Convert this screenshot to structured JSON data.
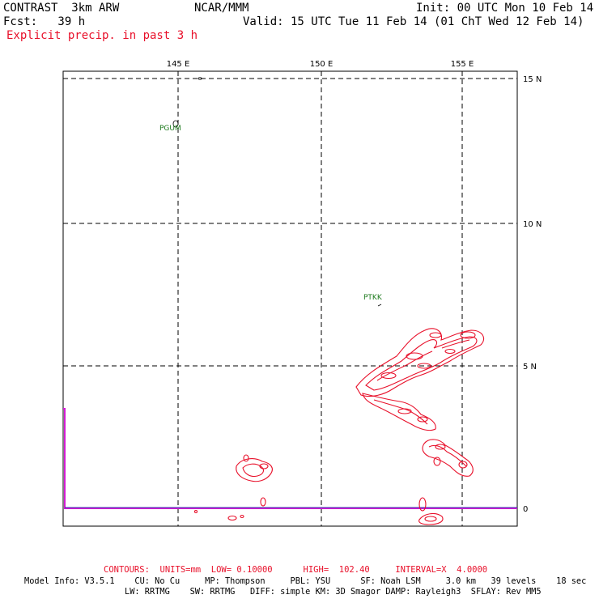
{
  "header": {
    "model": "CONTRAST  3km ARW",
    "fcst": "Fcst:   39 h",
    "center": "NCAR/MMM",
    "init": "Init: 00 UTC Mon 10 Feb 14",
    "valid": "Valid: 15 UTC Tue 11 Feb 14 (01 ChT Wed 12 Feb 14)",
    "field": "Explicit precip. in past 3 h"
  },
  "map": {
    "lon_labels": [
      "145 E",
      "150 E",
      "155 E"
    ],
    "lat_labels": [
      "15 N",
      "10 N",
      "5 N",
      "0"
    ],
    "stations": [
      "PGUM",
      "PTKK"
    ],
    "colors": {
      "precip_contour": "#e8102a",
      "frame_line": "#d41ad4",
      "station": "#1d7a1d"
    }
  },
  "footer": {
    "contours": "CONTOURS:  UNITS=mm  LOW= 0.10000      HIGH=  102.40     INTERVAL=X  4.0000",
    "model_info_1": "Model Info: V3.5.1    CU: No Cu     MP: Thompson     PBL: YSU      SF: Noah LSM     3.0 km   39 levels    18 sec",
    "model_info_2": "LW: RRTMG    SW: RRTMG   DIFF: simple KM: 3D Smagor DAMP: Rayleigh3  SFLAY: Rev MM5"
  }
}
